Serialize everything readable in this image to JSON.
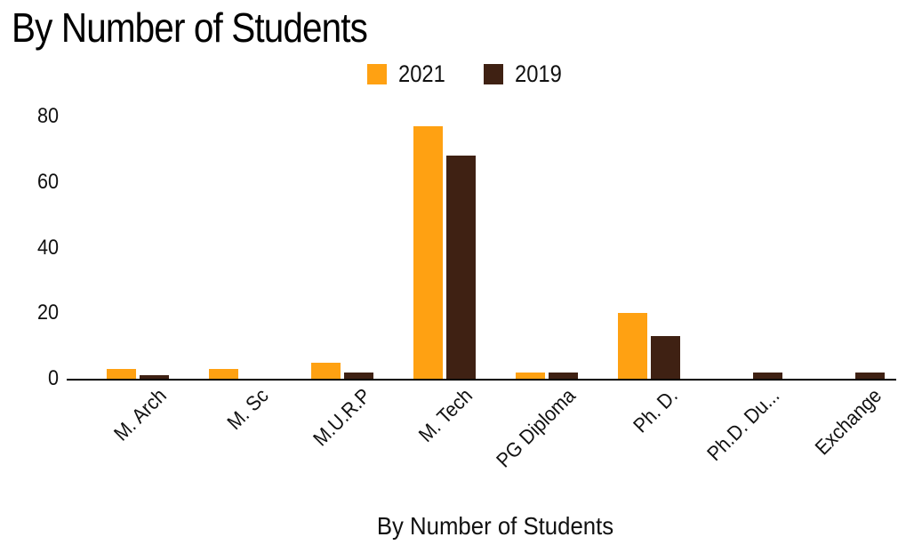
{
  "chart_data": {
    "type": "bar",
    "title": "By Number of Students",
    "x_axis_title": "By Number of Students",
    "ylabel": "",
    "categories": [
      "M. Arch",
      "M. Sc",
      "M.U.R.P",
      "M. Tech",
      "PG Diploma",
      "Ph. D.",
      "Ph.D. Du...",
      "Exchange"
    ],
    "series": [
      {
        "name": "2021",
        "color": "#FFA112",
        "values": [
          3,
          3,
          5,
          77,
          2,
          20,
          0,
          0
        ]
      },
      {
        "name": "2019",
        "color": "#3F2113",
        "values": [
          1,
          0,
          2,
          68,
          2,
          13,
          2,
          2
        ]
      }
    ],
    "y_ticks": [
      0,
      20,
      40,
      60,
      80
    ],
    "ylim": [
      0,
      80
    ],
    "legend_position": "top",
    "grid": false,
    "axis_color": "#000000",
    "text_color": "#111111",
    "background_color": "#ffffff"
  }
}
